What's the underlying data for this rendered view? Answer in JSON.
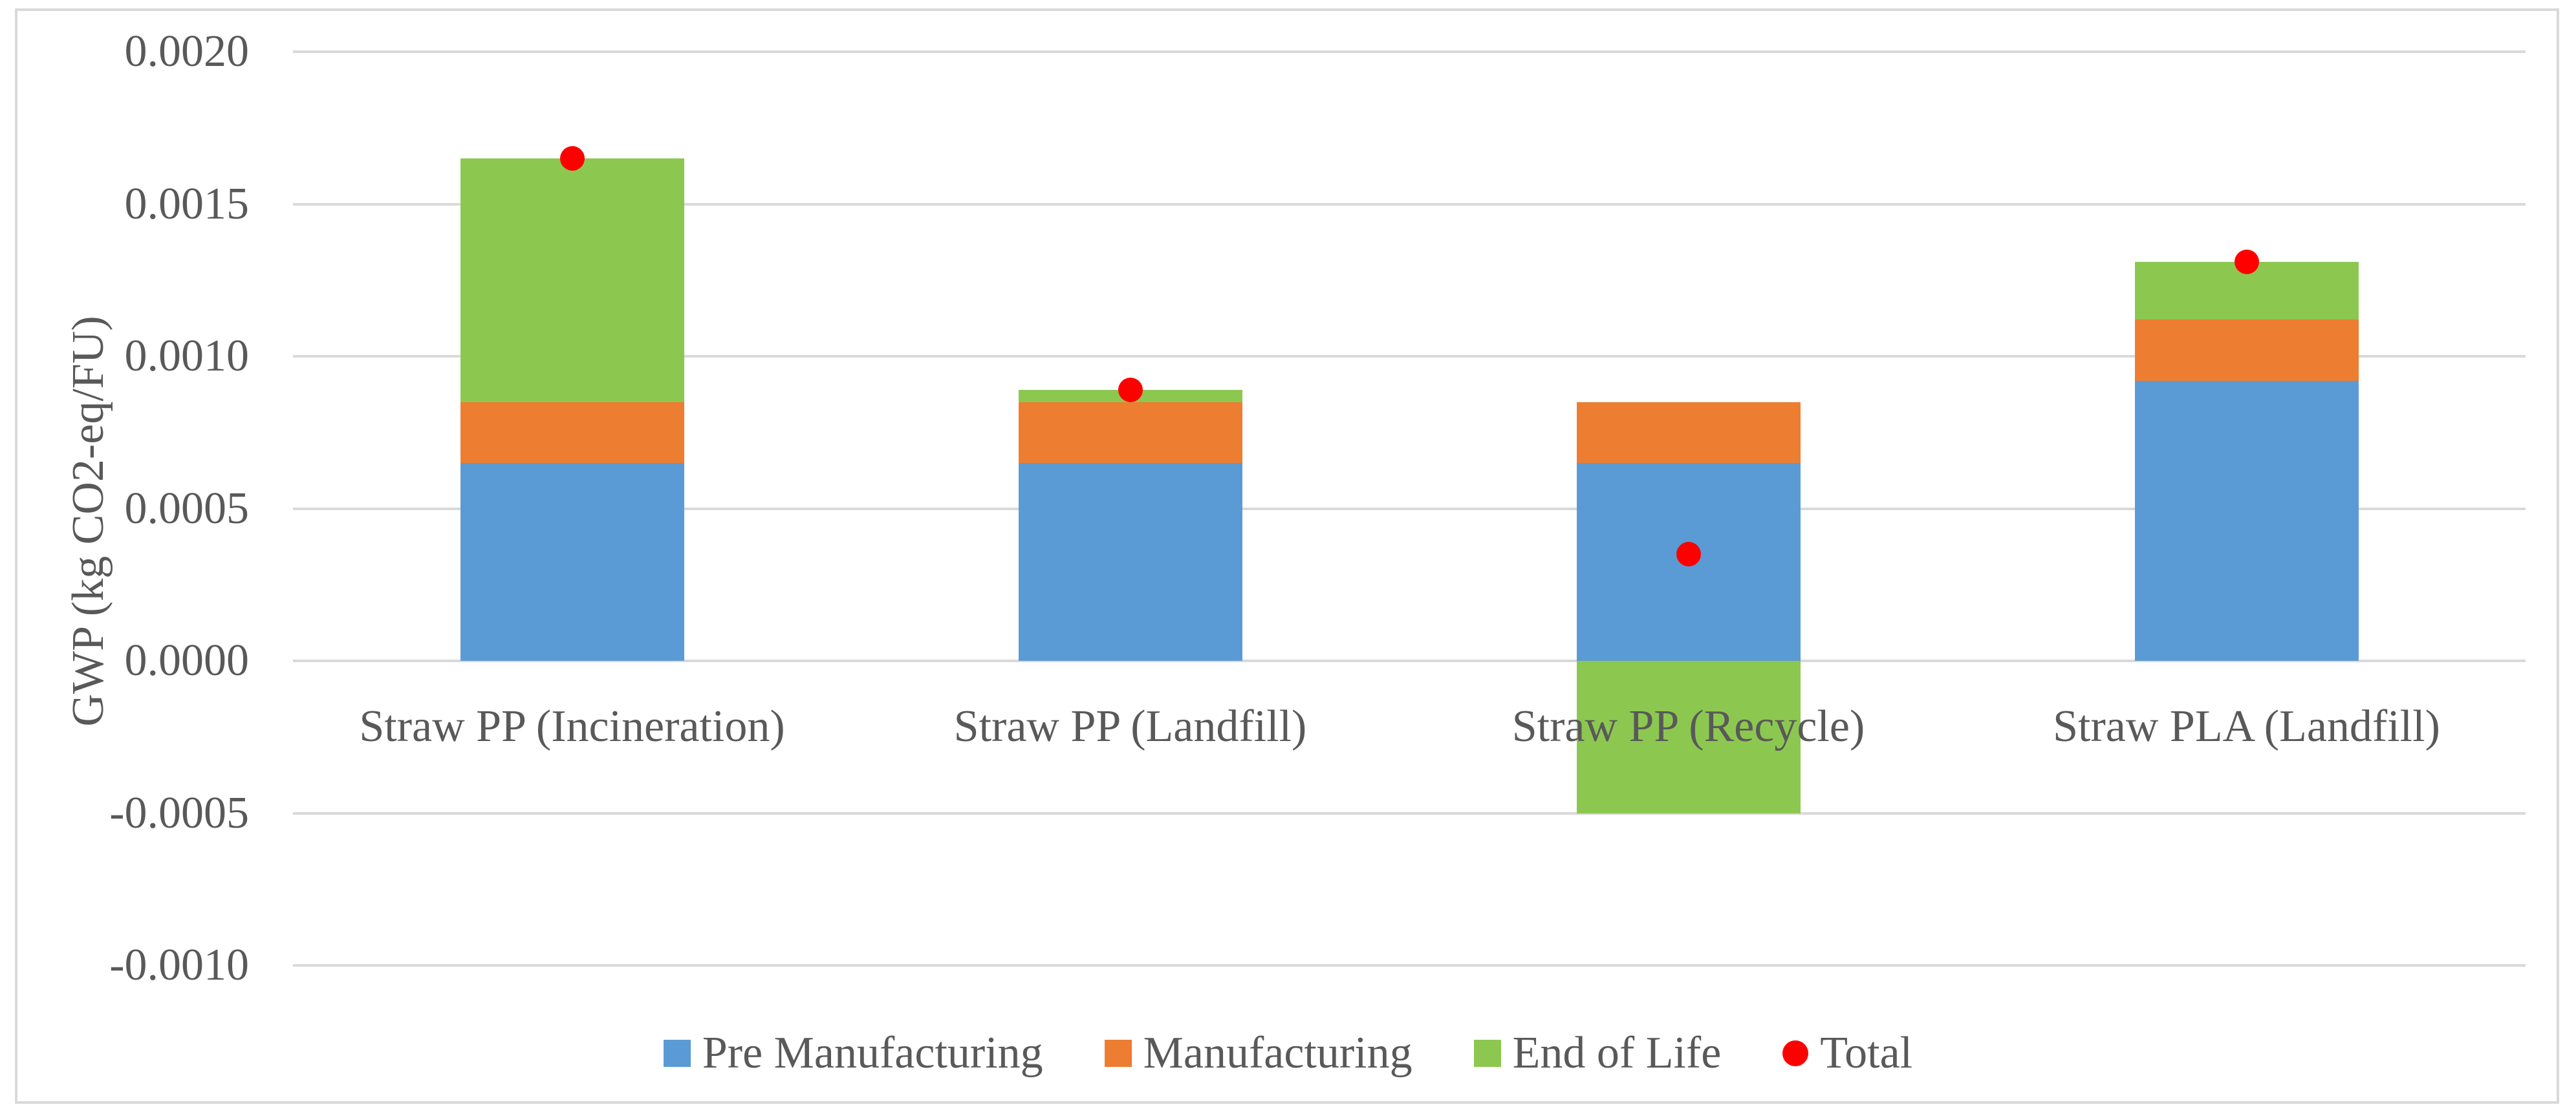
{
  "chart_data": {
    "type": "bar",
    "subtype": "stacked-bars-with-total-points",
    "title": "",
    "xlabel": "",
    "ylabel": "GWP (kg CO2-eq/FU)",
    "categories": [
      "Straw PP (Incineration)",
      "Straw PP (Landfill)",
      "Straw PP (Recycle)",
      "Straw PLA (Landfill)"
    ],
    "series": [
      {
        "name": "Pre Manufacturing",
        "type": "stacked-bar",
        "color": "#5B9BD5",
        "values": [
          0.00065,
          0.00065,
          0.00065,
          0.00092
        ]
      },
      {
        "name": "Manufacturing",
        "type": "stacked-bar",
        "color": "#ED7D31",
        "values": [
          0.0002,
          0.0002,
          0.0002,
          0.0002
        ]
      },
      {
        "name": "End of Life",
        "type": "stacked-bar",
        "color": "#8CC850",
        "values": [
          0.0008,
          4e-05,
          -0.0005,
          0.00019
        ]
      },
      {
        "name": "Total",
        "type": "point",
        "color": "#FF0000",
        "values": [
          0.00165,
          0.00089,
          0.00035,
          0.00131
        ]
      }
    ],
    "y_ticks": [
      {
        "value": 0.002,
        "label": "0.0020"
      },
      {
        "value": 0.0015,
        "label": "0.0015"
      },
      {
        "value": 0.001,
        "label": "0.0010"
      },
      {
        "value": 0.0005,
        "label": "0.0005"
      },
      {
        "value": 0.0,
        "label": "0.0000"
      },
      {
        "value": -0.0005,
        "label": "-0.0005"
      },
      {
        "value": -0.001,
        "label": "-0.0010"
      }
    ],
    "ylim": [
      -0.001,
      0.002
    ],
    "grid": true,
    "legend_position": "bottom",
    "colors": {
      "text": "#595959",
      "gridline": "#D9D9D9",
      "frame": "#D9D9D9",
      "background": "#FFFFFF"
    }
  }
}
